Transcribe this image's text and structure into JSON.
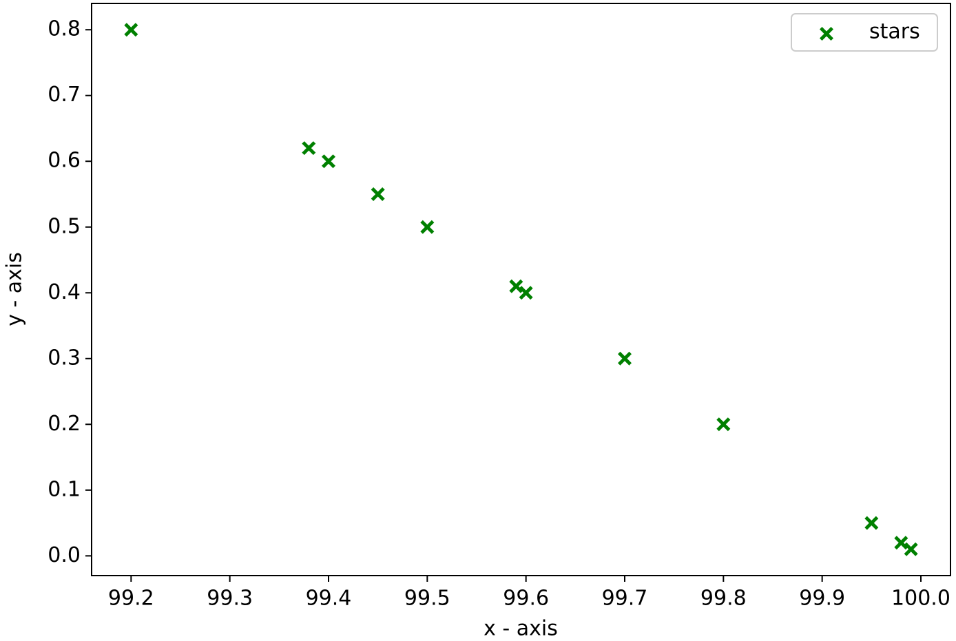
{
  "chart_data": {
    "type": "scatter",
    "x_label": "x - axis",
    "y_label": "y - axis",
    "series": [
      {
        "name": "stars",
        "color": "#008000",
        "x": [
          99.2,
          99.38,
          99.4,
          99.45,
          99.5,
          99.59,
          99.6,
          99.7,
          99.8,
          99.95,
          99.98,
          99.99
        ],
        "values": [
          0.8,
          0.62,
          0.6,
          0.55,
          0.5,
          0.41,
          0.4,
          0.3,
          0.2,
          0.05,
          0.02,
          0.01
        ]
      }
    ],
    "xlim": [
      99.16,
      100.03
    ],
    "xticks": [
      99.2,
      99.3,
      99.4,
      99.5,
      99.6,
      99.7,
      99.8,
      99.9,
      {
        "value": 100,
        "label": "100.0"
      }
    ],
    "ylim": [
      -0.03,
      0.84
    ],
    "yticks": [
      {
        "value": 0,
        "label": "0.0"
      },
      0.1,
      0.2,
      0.3,
      0.4,
      0.5,
      0.6,
      0.7,
      0.8
    ],
    "legend": "upper right",
    "grid": false
  }
}
